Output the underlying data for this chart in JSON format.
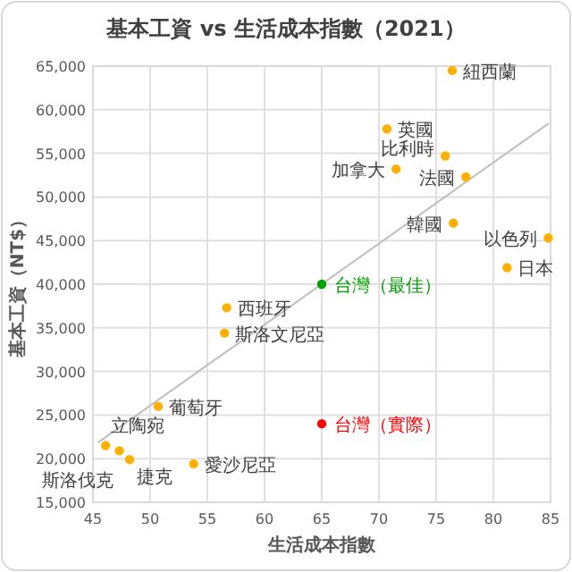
{
  "chart_data": {
    "type": "scatter",
    "title": "基本工資 vs 生活成本指數（2021）",
    "xlabel": "生活成本指數",
    "ylabel": "基本工資（NT$）",
    "xlim": [
      45,
      85
    ],
    "xticks": [
      45,
      50,
      55,
      60,
      65,
      70,
      75,
      80,
      85
    ],
    "ylim": [
      15000,
      65000
    ],
    "yticks": [
      {
        "value": 15000,
        "label": "15,000"
      },
      {
        "value": 20000,
        "label": "20,000"
      },
      {
        "value": 25000,
        "label": "25,000"
      },
      {
        "value": 30000,
        "label": "30,000"
      },
      {
        "value": 35000,
        "label": "35,000"
      },
      {
        "value": 40000,
        "label": "40,000"
      },
      {
        "value": 45000,
        "label": "45,000"
      },
      {
        "value": 50000,
        "label": "50,000"
      },
      {
        "value": 55000,
        "label": "55,000"
      },
      {
        "value": 60000,
        "label": "60,000"
      },
      {
        "value": 65000,
        "label": "65,000"
      }
    ],
    "grid": true,
    "marker": "circle",
    "series": [
      {
        "type": "line",
        "color": "#bfbfbf",
        "marker": "none",
        "x": [
          45.5,
          84.8
        ],
        "values": [
          21900,
          58400
        ]
      },
      {
        "color": "#ffb000",
        "x": [
          76.4,
          70.7,
          75.8,
          71.5,
          77.6,
          76.5,
          84.8,
          81.2,
          56.7,
          56.5,
          50.7,
          46.1,
          47.3,
          48.2,
          53.8
        ],
        "values": [
          64500,
          57800,
          54700,
          53200,
          52300,
          47000,
          45300,
          41900,
          37300,
          34400,
          26000,
          21500,
          20900,
          19900,
          19400
        ]
      },
      {
        "color": "#00a000",
        "x": [
          65
        ],
        "values": [
          40000
        ]
      },
      {
        "color": "#ff0000",
        "x": [
          65
        ],
        "values": [
          24000
        ]
      }
    ],
    "annotations": [
      {
        "text": "紐西蘭",
        "x": 76.4,
        "y": 64500
      },
      {
        "text": "英國",
        "x": 70.7,
        "y": 57800
      },
      {
        "text": "比利時",
        "x": 75.8,
        "y": 54700
      },
      {
        "text": "加拿大",
        "x": 71.5,
        "y": 53200
      },
      {
        "text": "法國",
        "x": 77.6,
        "y": 52300
      },
      {
        "text": "韓國",
        "x": 76.5,
        "y": 47000
      },
      {
        "text": "以色列",
        "x": 84.8,
        "y": 45300
      },
      {
        "text": "日本",
        "x": 81.2,
        "y": 41900
      },
      {
        "text": "西班牙",
        "x": 56.7,
        "y": 37300
      },
      {
        "text": "斯洛文尼亞",
        "x": 56.5,
        "y": 34400
      },
      {
        "text": "葡萄牙",
        "x": 50.7,
        "y": 26000
      },
      {
        "text": "立陶宛",
        "x": 46.1,
        "y": 21500
      },
      {
        "text": "斯洛伐克",
        "x": 47.3,
        "y": 20900
      },
      {
        "text": "捷克",
        "x": 48.2,
        "y": 19900
      },
      {
        "text": "愛沙尼亞",
        "x": 53.8,
        "y": 19400
      },
      {
        "text": "台灣（最佳）",
        "x": 65,
        "y": 40000
      },
      {
        "text": "台灣（實際）",
        "x": 65,
        "y": 24000
      }
    ]
  }
}
